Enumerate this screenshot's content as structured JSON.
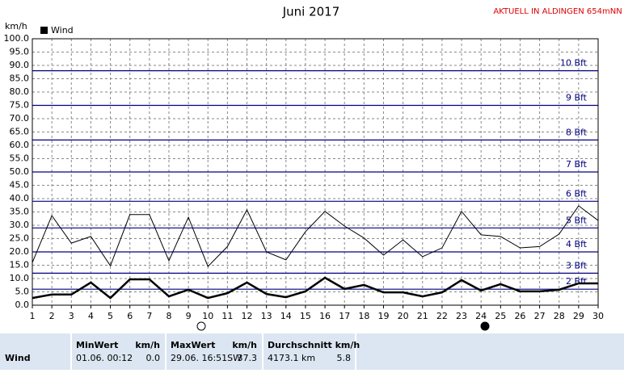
{
  "chart_data": {
    "type": "line",
    "title": "Juni 2017",
    "subtitle": "AKTUELL IN ALDINGEN 654mNN",
    "y_label": "km/h",
    "x": [
      1,
      2,
      3,
      4,
      5,
      6,
      7,
      8,
      9,
      10,
      11,
      12,
      13,
      14,
      15,
      16,
      17,
      18,
      19,
      20,
      21,
      22,
      23,
      24,
      25,
      26,
      27,
      28,
      29,
      30
    ],
    "xlim": [
      1,
      30
    ],
    "xticks": [
      1,
      2,
      3,
      4,
      5,
      6,
      7,
      8,
      9,
      10,
      11,
      12,
      13,
      14,
      15,
      16,
      17,
      18,
      19,
      20,
      21,
      22,
      23,
      24,
      25,
      26,
      27,
      28,
      29,
      30
    ],
    "ylim": [
      0,
      100
    ],
    "yticks": [
      {
        "value": 0,
        "label": "0.0"
      },
      {
        "value": 5,
        "label": "5.0"
      },
      {
        "value": 10,
        "label": "10.0"
      },
      {
        "value": 15,
        "label": "15.0"
      },
      {
        "value": 20,
        "label": "20.0"
      },
      {
        "value": 25,
        "label": "25.0"
      },
      {
        "value": 30,
        "label": "30.0"
      },
      {
        "value": 35,
        "label": "35.0"
      },
      {
        "value": 40,
        "label": "40.0"
      },
      {
        "value": 45,
        "label": "45.0"
      },
      {
        "value": 50,
        "label": "50.0"
      },
      {
        "value": 55,
        "label": "55.0"
      },
      {
        "value": 60,
        "label": "60.0"
      },
      {
        "value": 65,
        "label": "65.0"
      },
      {
        "value": 70,
        "label": "70.0"
      },
      {
        "value": 75,
        "label": "75.0"
      },
      {
        "value": 80,
        "label": "80.0"
      },
      {
        "value": 85,
        "label": "85.0"
      },
      {
        "value": 90,
        "label": "90.0"
      },
      {
        "value": 95,
        "label": "95.0"
      },
      {
        "value": 100,
        "label": "100.0"
      }
    ],
    "grid": true,
    "reference_lines": [
      {
        "value": 6,
        "label": "2 Bft"
      },
      {
        "value": 12,
        "label": "3 Bft"
      },
      {
        "value": 20,
        "label": "4 Bft"
      },
      {
        "value": 29,
        "label": "5 Bft"
      },
      {
        "value": 39,
        "label": "6 Bft"
      },
      {
        "value": 50,
        "label": "7 Bft"
      },
      {
        "value": 62,
        "label": "8 Bft"
      },
      {
        "value": 75,
        "label": "9 Bft"
      },
      {
        "value": 88,
        "label": "10 Bft"
      }
    ],
    "reference_color": "#000080",
    "series": [
      {
        "color": "#000000",
        "values": [
          16,
          33.6,
          23.3,
          25.8,
          14.8,
          34,
          34,
          16.7,
          33,
          14.5,
          22,
          35.8,
          20,
          17,
          27.6,
          35.2,
          29.7,
          25.2,
          18.8,
          24.5,
          18.2,
          21.5,
          35.2,
          26.4,
          25.8,
          21.5,
          22,
          26.7,
          37.3,
          31.8
        ]
      },
      {
        "name": "Wind",
        "color": "#000000",
        "values": [
          2.7,
          4,
          4,
          8.5,
          2.7,
          9.7,
          9.7,
          3.3,
          5.8,
          2.7,
          4.5,
          8.5,
          4.2,
          3,
          5.2,
          10.3,
          6.1,
          7.6,
          4.8,
          4.8,
          3.3,
          4.8,
          9.4,
          5.5,
          7.9,
          5.2,
          5.2,
          5.8,
          8.2,
          8.2
        ]
      }
    ]
  },
  "table": {
    "headers": [
      "MinWert",
      "km/h",
      "MaxWert",
      "km/h",
      "Durchschnitt km/h"
    ],
    "rows": [
      [
        "Wind",
        "01.06.  00:12",
        "0.0",
        "29.06.  16:51SW",
        "37.3",
        "4173.1 km",
        "5.8"
      ]
    ]
  }
}
